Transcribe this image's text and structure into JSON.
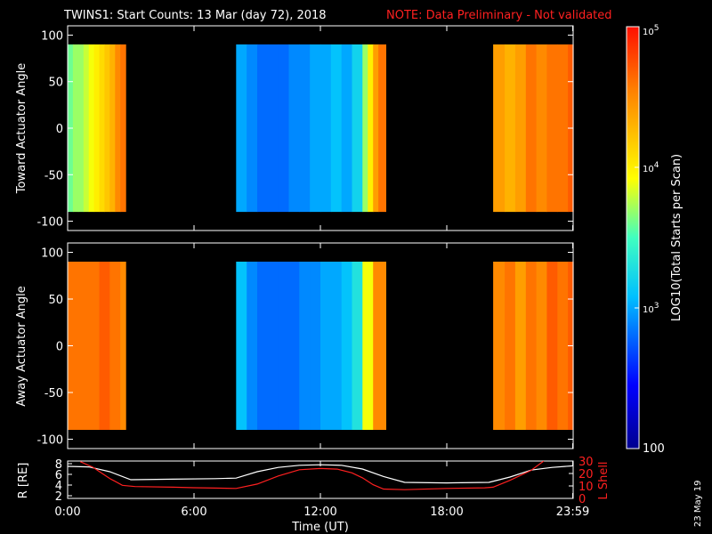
{
  "title": {
    "main": "TWINS1: Start Counts: 13 Mar (day  72), 2018",
    "note": "NOTE: Data Preliminary - Not validated"
  },
  "side_date": "23 May 19",
  "colorbar": {
    "label": "LOG10(Total Starts per Scan)",
    "tick_labels": [
      "10^5",
      "10^4",
      "10^3",
      "100"
    ],
    "log_range": [
      2,
      5
    ]
  },
  "chart_data": [
    {
      "type": "heatmap",
      "ylabel": "Toward Actuator Angle",
      "ylim": [
        -110,
        110
      ],
      "yticks": [
        100,
        50,
        0,
        -50,
        -100
      ],
      "xlim": [
        0,
        24
      ],
      "angle_range": [
        -90,
        90
      ],
      "coverage_hours": [
        [
          0.0,
          2.75
        ],
        [
          8.0,
          15.1
        ],
        [
          20.2,
          24.0
        ]
      ],
      "columns": [
        {
          "hour": 0.0,
          "log_counts": 3.6
        },
        {
          "hour": 0.25,
          "log_counts": 3.7
        },
        {
          "hour": 0.5,
          "log_counts": 3.7
        },
        {
          "hour": 0.75,
          "log_counts": 3.8
        },
        {
          "hour": 1.0,
          "log_counts": 3.9
        },
        {
          "hour": 1.25,
          "log_counts": 4.0
        },
        {
          "hour": 1.5,
          "log_counts": 4.1
        },
        {
          "hour": 1.75,
          "log_counts": 4.2
        },
        {
          "hour": 2.0,
          "log_counts": 4.3
        },
        {
          "hour": 2.25,
          "log_counts": 4.5
        },
        {
          "hour": 2.5,
          "log_counts": 4.6
        },
        {
          "hour": 8.0,
          "log_counts": 3.0
        },
        {
          "hour": 8.5,
          "log_counts": 2.9
        },
        {
          "hour": 9.0,
          "log_counts": 2.8
        },
        {
          "hour": 9.5,
          "log_counts": 2.8
        },
        {
          "hour": 10.0,
          "log_counts": 2.8
        },
        {
          "hour": 10.5,
          "log_counts": 2.9
        },
        {
          "hour": 11.0,
          "log_counts": 2.9
        },
        {
          "hour": 11.5,
          "log_counts": 3.0
        },
        {
          "hour": 12.0,
          "log_counts": 3.0
        },
        {
          "hour": 12.5,
          "log_counts": 3.1
        },
        {
          "hour": 13.0,
          "log_counts": 3.0
        },
        {
          "hour": 13.5,
          "log_counts": 3.2
        },
        {
          "hour": 14.0,
          "log_counts": 3.7
        },
        {
          "hour": 14.25,
          "log_counts": 4.0
        },
        {
          "hour": 14.5,
          "log_counts": 4.4
        },
        {
          "hour": 14.75,
          "log_counts": 4.6
        },
        {
          "hour": 20.2,
          "log_counts": 4.4
        },
        {
          "hour": 20.75,
          "log_counts": 4.3
        },
        {
          "hour": 21.25,
          "log_counts": 4.4
        },
        {
          "hour": 21.75,
          "log_counts": 4.6
        },
        {
          "hour": 22.25,
          "log_counts": 4.5
        },
        {
          "hour": 22.75,
          "log_counts": 4.6
        },
        {
          "hour": 23.25,
          "log_counts": 4.6
        },
        {
          "hour": 23.75,
          "log_counts": 4.7
        }
      ]
    },
    {
      "type": "heatmap",
      "ylabel": "Away Actuator Angle",
      "ylim": [
        -110,
        110
      ],
      "yticks": [
        100,
        50,
        0,
        -50,
        -100
      ],
      "xlim": [
        0,
        24
      ],
      "angle_range": [
        -90,
        90
      ],
      "coverage_hours": [
        [
          0.0,
          2.75
        ],
        [
          8.0,
          15.1
        ],
        [
          20.2,
          24.0
        ]
      ],
      "columns": [
        {
          "hour": 0.0,
          "log_counts": 4.6
        },
        {
          "hour": 0.5,
          "log_counts": 4.6
        },
        {
          "hour": 1.0,
          "log_counts": 4.6
        },
        {
          "hour": 1.5,
          "log_counts": 4.7
        },
        {
          "hour": 2.0,
          "log_counts": 4.6
        },
        {
          "hour": 2.5,
          "log_counts": 4.5
        },
        {
          "hour": 8.0,
          "log_counts": 3.1
        },
        {
          "hour": 8.5,
          "log_counts": 2.9
        },
        {
          "hour": 9.0,
          "log_counts": 2.8
        },
        {
          "hour": 9.5,
          "log_counts": 2.8
        },
        {
          "hour": 10.0,
          "log_counts": 2.8
        },
        {
          "hour": 10.5,
          "log_counts": 2.8
        },
        {
          "hour": 11.0,
          "log_counts": 2.9
        },
        {
          "hour": 11.5,
          "log_counts": 2.9
        },
        {
          "hour": 12.0,
          "log_counts": 3.0
        },
        {
          "hour": 12.5,
          "log_counts": 3.0
        },
        {
          "hour": 13.0,
          "log_counts": 3.1
        },
        {
          "hour": 13.5,
          "log_counts": 3.3
        },
        {
          "hour": 14.0,
          "log_counts": 3.9
        },
        {
          "hour": 14.5,
          "log_counts": 4.5
        },
        {
          "hour": 20.2,
          "log_counts": 4.5
        },
        {
          "hour": 20.75,
          "log_counts": 4.6
        },
        {
          "hour": 21.25,
          "log_counts": 4.4
        },
        {
          "hour": 21.75,
          "log_counts": 4.6
        },
        {
          "hour": 22.25,
          "log_counts": 4.5
        },
        {
          "hour": 22.75,
          "log_counts": 4.7
        },
        {
          "hour": 23.25,
          "log_counts": 4.6
        },
        {
          "hour": 23.75,
          "log_counts": 4.7
        }
      ]
    },
    {
      "type": "line",
      "xlabel": "Time (UT)",
      "ylabel": "R [RE]",
      "y2label": "L Shell",
      "xticks": [
        "0:00",
        "6:00",
        "12:00",
        "18:00",
        "23:59"
      ],
      "xtick_hours": [
        0,
        6,
        12,
        18,
        23.98
      ],
      "xlim": [
        0,
        24
      ],
      "yticks": [
        8,
        6,
        4,
        2
      ],
      "ylim": [
        1.5,
        8.5
      ],
      "y2ticks": [
        30,
        20,
        10,
        0
      ],
      "y2lim": [
        0,
        30
      ],
      "series": [
        {
          "axis": "left",
          "color": "#ffffff",
          "x": [
            0,
            1,
            2,
            3,
            5,
            7,
            8,
            9,
            10,
            11,
            12,
            13,
            14,
            15,
            16,
            18,
            20,
            21,
            22,
            23,
            24
          ],
          "y": [
            7.5,
            7.4,
            6.5,
            5.0,
            5.1,
            5.2,
            5.3,
            6.5,
            7.3,
            7.7,
            7.8,
            7.7,
            7.0,
            5.6,
            4.5,
            4.4,
            4.5,
            5.5,
            6.8,
            7.3,
            7.6
          ]
        },
        {
          "axis": "right",
          "color": "#ff2020",
          "x": [
            0.6,
            1.2,
            2.0,
            2.6,
            3.2,
            5.0,
            6.0,
            7.0,
            8.0,
            9.0,
            10.0,
            11.0,
            12.0,
            12.8,
            13.5,
            14.0,
            14.5,
            15.0,
            16.0,
            18.0,
            19.8,
            20.2,
            21.0,
            22.0,
            22.6
          ],
          "y": [
            29.5,
            25.0,
            16.0,
            10.5,
            9.5,
            9.0,
            8.6,
            8.3,
            8.0,
            11.5,
            18.0,
            23.0,
            24.0,
            23.5,
            20.5,
            16.5,
            11.0,
            7.5,
            7.0,
            8.0,
            8.5,
            9.0,
            14.5,
            22.5,
            30.0
          ]
        }
      ]
    }
  ]
}
